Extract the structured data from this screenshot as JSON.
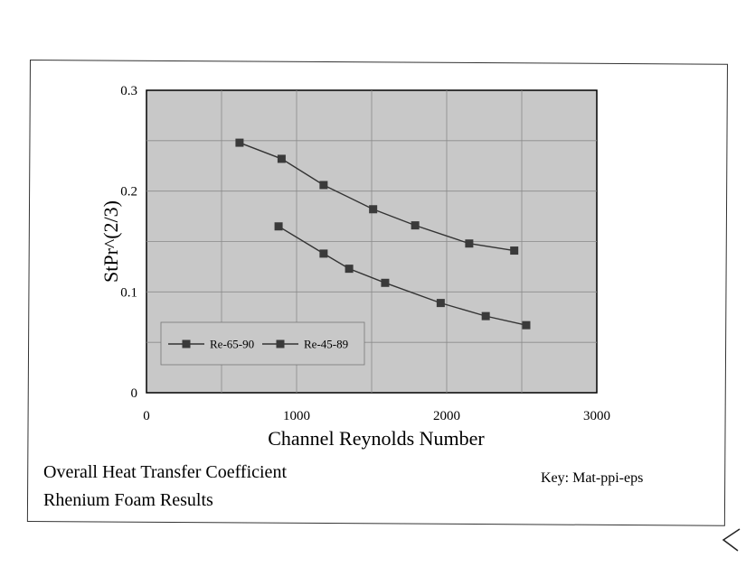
{
  "chart_data": {
    "type": "line",
    "xlabel": "Channel Reynolds Number",
    "ylabel": "StPr^(2/3)",
    "xlim": [
      0,
      3000
    ],
    "ylim": [
      0,
      0.3
    ],
    "x_ticks": [
      "0",
      "1000",
      "2000",
      "3000"
    ],
    "y_ticks": [
      "0",
      "0.1",
      "0.2",
      "0.3"
    ],
    "grid": true,
    "legend_position": "bottom-left",
    "series": [
      {
        "name": "Re-65-90",
        "x": [
          620,
          900,
          1180,
          1510,
          1790,
          2150,
          2450
        ],
        "y": [
          0.248,
          0.232,
          0.206,
          0.182,
          0.166,
          0.148,
          0.141
        ]
      },
      {
        "name": "Re-45-89",
        "x": [
          880,
          1180,
          1350,
          1590,
          1960,
          2260,
          2530
        ],
        "y": [
          0.165,
          0.138,
          0.123,
          0.109,
          0.089,
          0.076,
          0.067
        ]
      }
    ],
    "colors": {
      "plot_background": "#c8c8c8",
      "line": "#333333",
      "marker": "#3a3a3a"
    }
  },
  "caption": {
    "line1": "Overall Heat Transfer Coefficient",
    "line2": "Rhenium Foam Results"
  },
  "key": "Key:  Mat-ppi-eps"
}
